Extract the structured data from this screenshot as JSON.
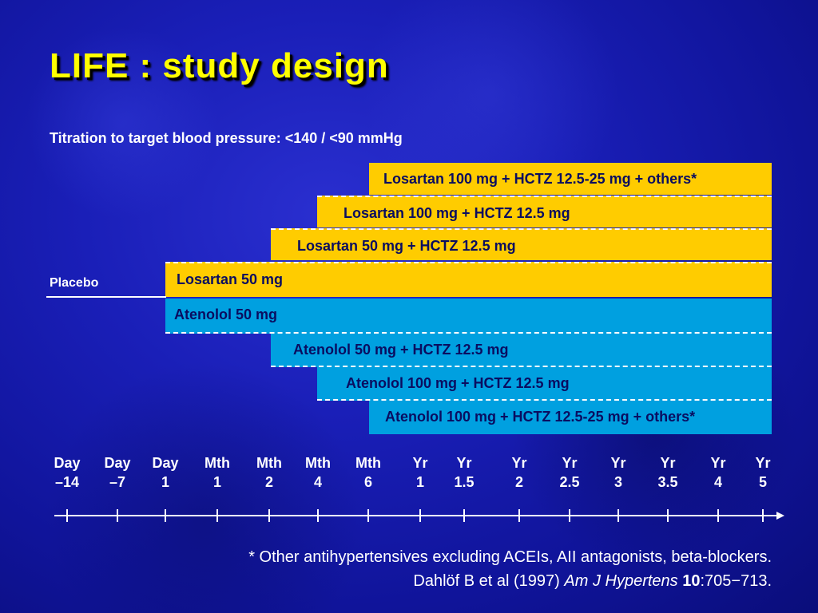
{
  "title": "LIFE : study design",
  "subtitle": "Titration to target blood pressure: <140 / <90 mmHg",
  "placebo_label": "Placebo",
  "colors": {
    "losartan": "#ffcc00",
    "atenolol": "#00a0e0",
    "background": "#1a1fb8",
    "title": "#ffff00"
  },
  "losartan_arm": [
    {
      "label": "Losartan 100 mg + HCTZ 12.5-25 mg + others*",
      "starts_at": "Mth 6"
    },
    {
      "label": "Losartan 100 mg + HCTZ 12.5 mg",
      "starts_at": "Mth 4"
    },
    {
      "label": "Losartan 50 mg + HCTZ 12.5 mg",
      "starts_at": "Mth 2"
    },
    {
      "label": "Losartan 50 mg",
      "starts_at": "Day 1"
    }
  ],
  "atenolol_arm": [
    {
      "label": "Atenolol 50 mg",
      "starts_at": "Day 1"
    },
    {
      "label": "Atenolol 50 mg + HCTZ 12.5 mg",
      "starts_at": "Mth 2"
    },
    {
      "label": "Atenolol 100 mg + HCTZ 12.5 mg",
      "starts_at": "Mth 4"
    },
    {
      "label": "Atenolol 100 mg + HCTZ 12.5-25 mg + others*",
      "starts_at": "Mth 6"
    }
  ],
  "timeline": [
    {
      "unit": "Day",
      "value": "–14"
    },
    {
      "unit": "Day",
      "value": "–7"
    },
    {
      "unit": "Day",
      "value": "1"
    },
    {
      "unit": "Mth",
      "value": "1"
    },
    {
      "unit": "Mth",
      "value": "2"
    },
    {
      "unit": "Mth",
      "value": "4"
    },
    {
      "unit": "Mth",
      "value": "6"
    },
    {
      "unit": "Yr",
      "value": "1"
    },
    {
      "unit": "Yr",
      "value": "1.5"
    },
    {
      "unit": "Yr",
      "value": "2"
    },
    {
      "unit": "Yr",
      "value": "2.5"
    },
    {
      "unit": "Yr",
      "value": "3"
    },
    {
      "unit": "Yr",
      "value": "3.5"
    },
    {
      "unit": "Yr",
      "value": "4"
    },
    {
      "unit": "Yr",
      "value": "5"
    }
  ],
  "footnote": {
    "line1": "* Other antihypertensives excluding ACEIs, AII antagonists, beta-blockers.",
    "citation_prefix": "Dahlöf B et al (1997) ",
    "journal": "Am J Hypertens",
    "volume": "10",
    "pages": ":705−713."
  }
}
